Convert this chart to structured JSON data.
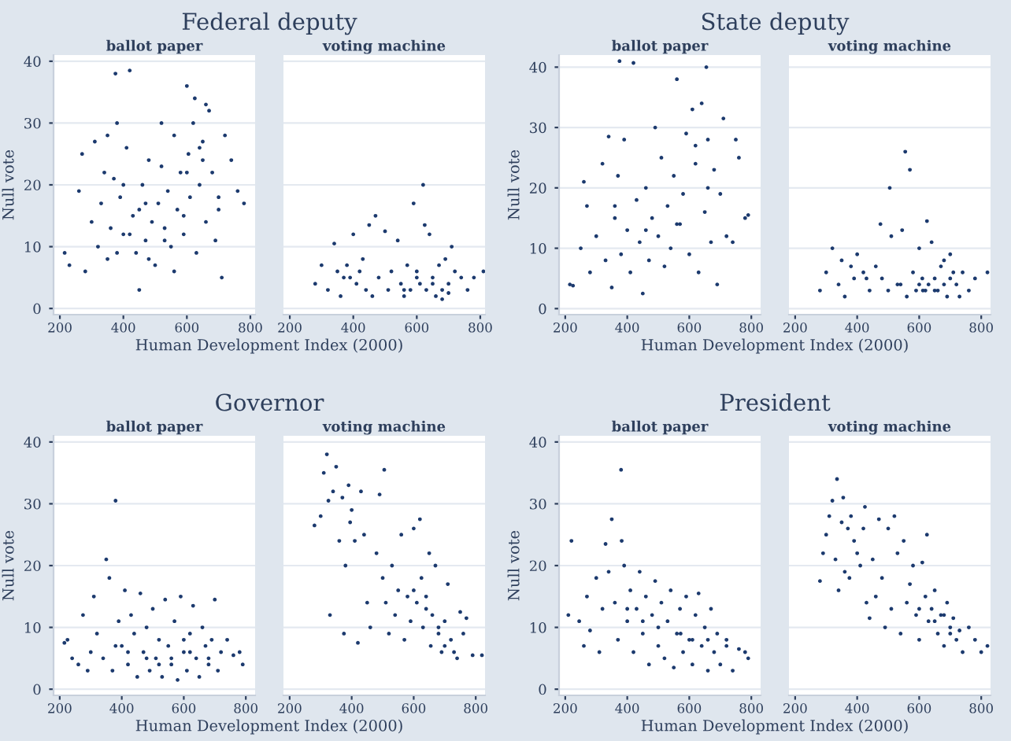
{
  "chart_data": [
    {
      "type": "scatter",
      "title": "Federal deputy",
      "subtitle": "ballot paper",
      "xlabel": "Human Development Index (2000)",
      "ylabel": "Null vote",
      "color": "#1c3a6e",
      "marker": "circle",
      "grid": "y",
      "xlim": [
        180,
        815
      ],
      "ylim": [
        -1,
        41
      ],
      "xticks": [
        200,
        400,
        600,
        800
      ],
      "yticks": [
        0,
        10,
        20,
        30,
        40
      ],
      "x": [
        215,
        230,
        260,
        270,
        280,
        300,
        310,
        320,
        330,
        340,
        350,
        360,
        370,
        375,
        380,
        390,
        400,
        410,
        420,
        430,
        440,
        450,
        460,
        470,
        480,
        490,
        500,
        510,
        520,
        530,
        540,
        550,
        560,
        570,
        580,
        590,
        600,
        605,
        610,
        620,
        625,
        630,
        640,
        650,
        660,
        670,
        680,
        690,
        700,
        710,
        720,
        740,
        760,
        780,
        420,
        380,
        450,
        560,
        600,
        640,
        700,
        350,
        480,
        520,
        660,
        400,
        590,
        650,
        530,
        470
      ],
      "values": [
        9,
        7,
        19,
        25,
        6,
        14,
        27,
        10,
        17,
        22,
        8,
        13,
        21,
        38,
        30,
        18,
        12,
        26,
        38.5,
        15,
        9,
        3,
        20,
        11,
        24,
        14,
        7,
        17,
        30,
        13,
        19,
        10,
        28,
        16,
        22,
        12,
        36,
        25,
        18,
        30,
        34,
        9,
        20,
        27,
        14,
        32,
        22,
        11,
        18,
        5,
        28,
        24,
        19,
        17,
        12,
        9,
        16,
        6,
        22,
        26,
        16,
        28,
        8,
        23,
        33,
        20,
        15,
        24,
        11,
        17
      ]
    },
    {
      "type": "scatter",
      "subtitle": "voting machine",
      "color": "#1c3a6e",
      "marker": "circle",
      "grid": "y",
      "tick_labels": "x",
      "xlim": [
        180,
        815
      ],
      "ylim": [
        -1,
        41
      ],
      "xticks": [
        200,
        400,
        600,
        800
      ],
      "yticks": [
        0,
        10,
        20,
        30,
        40
      ],
      "x": [
        280,
        300,
        320,
        340,
        350,
        360,
        380,
        390,
        400,
        410,
        420,
        440,
        450,
        460,
        470,
        480,
        500,
        510,
        520,
        540,
        550,
        560,
        570,
        580,
        590,
        600,
        610,
        620,
        625,
        630,
        640,
        650,
        660,
        670,
        680,
        690,
        700,
        710,
        720,
        740,
        760,
        780,
        810,
        650,
        600,
        560,
        680,
        430,
        370,
        700
      ],
      "values": [
        4,
        7,
        3,
        10.5,
        6,
        2,
        7,
        5,
        12,
        4,
        6,
        3,
        13.5,
        2,
        15,
        5,
        12.5,
        3,
        6,
        11,
        4,
        2,
        7,
        3,
        17,
        5,
        4,
        20,
        13.5,
        3,
        12,
        5,
        2,
        7,
        3,
        8,
        4,
        10,
        6,
        5,
        3,
        5,
        6,
        4,
        6,
        3,
        1.5,
        8,
        5,
        2.5
      ]
    },
    {
      "type": "scatter",
      "title": "State deputy",
      "subtitle": "ballot paper",
      "xlabel": "Human Development Index (2000)",
      "ylabel": "Null vote",
      "color": "#1c3a6e",
      "marker": "circle",
      "grid": "y",
      "xlim": [
        180,
        830
      ],
      "ylim": [
        -1,
        42
      ],
      "xticks": [
        200,
        400,
        600,
        800
      ],
      "yticks": [
        0,
        10,
        20,
        30,
        40
      ],
      "x": [
        215,
        225,
        250,
        260,
        270,
        280,
        300,
        320,
        330,
        340,
        350,
        360,
        370,
        375,
        380,
        390,
        400,
        410,
        420,
        430,
        440,
        450,
        460,
        470,
        480,
        490,
        500,
        510,
        520,
        530,
        540,
        550,
        560,
        570,
        580,
        590,
        600,
        610,
        620,
        630,
        640,
        650,
        655,
        660,
        670,
        680,
        690,
        700,
        710,
        720,
        740,
        750,
        760,
        780,
        790,
        360,
        460,
        560,
        620,
        660
      ],
      "values": [
        4,
        3.8,
        10,
        21,
        17,
        6,
        12,
        24,
        8,
        28.5,
        3.5,
        15,
        22,
        41,
        9,
        28,
        13,
        6,
        40.7,
        18,
        11,
        2.5,
        20,
        8,
        15,
        30,
        12,
        25,
        7,
        17,
        10,
        22,
        38,
        14,
        19,
        29,
        9,
        33,
        24,
        6,
        34,
        16,
        40,
        28,
        11,
        23,
        4,
        19,
        31.5,
        12,
        11,
        28,
        25,
        15,
        15.5,
        17,
        13,
        14,
        27,
        20
      ]
    },
    {
      "type": "scatter",
      "subtitle": "voting machine",
      "color": "#1c3a6e",
      "marker": "circle",
      "grid": "y",
      "tick_labels": "x",
      "xlim": [
        180,
        830
      ],
      "ylim": [
        -1,
        42
      ],
      "xticks": [
        200,
        400,
        600,
        800
      ],
      "yticks": [
        0,
        10,
        20,
        30,
        40
      ],
      "x": [
        280,
        300,
        320,
        340,
        350,
        360,
        380,
        390,
        400,
        420,
        440,
        460,
        475,
        480,
        500,
        505,
        510,
        530,
        545,
        555,
        560,
        570,
        580,
        590,
        600,
        610,
        620,
        625,
        630,
        640,
        650,
        660,
        670,
        680,
        690,
        700,
        710,
        720,
        740,
        760,
        780,
        820,
        650,
        600,
        700,
        430,
        540,
        612,
        680,
        730
      ],
      "values": [
        3,
        6,
        10,
        4,
        8,
        2,
        7,
        5,
        9,
        6,
        3,
        7,
        14,
        5,
        3,
        20,
        12,
        4,
        13,
        26,
        2,
        23,
        6,
        3,
        10,
        5,
        3,
        14.5,
        4,
        11,
        5,
        3,
        7,
        4,
        2,
        9,
        6,
        4,
        6,
        3,
        5,
        6,
        3,
        4,
        5,
        5,
        4,
        3,
        8,
        2
      ]
    },
    {
      "type": "scatter",
      "title": "Governor",
      "subtitle": "ballot paper",
      "xlabel": "Human Development Index (2000)",
      "ylabel": "Null vote",
      "color": "#1c3a6e",
      "marker": "circle",
      "grid": "y",
      "xlim": [
        180,
        830
      ],
      "ylim": [
        -1,
        41
      ],
      "xticks": [
        200,
        400,
        600,
        800
      ],
      "yticks": [
        0,
        10,
        20,
        30,
        40
      ],
      "x": [
        215,
        225,
        240,
        260,
        275,
        290,
        300,
        310,
        320,
        340,
        350,
        360,
        370,
        380,
        390,
        400,
        410,
        420,
        430,
        440,
        450,
        460,
        470,
        480,
        490,
        500,
        510,
        520,
        530,
        540,
        550,
        560,
        570,
        580,
        590,
        600,
        610,
        620,
        630,
        640,
        650,
        660,
        670,
        680,
        690,
        700,
        710,
        720,
        740,
        760,
        780,
        790,
        420,
        480,
        560,
        620,
        680,
        380,
        520,
        600
      ],
      "values": [
        7.5,
        8,
        5,
        4,
        12,
        3,
        6,
        15,
        9,
        5,
        21,
        18,
        3,
        30.5,
        11,
        7,
        16,
        4,
        12,
        9,
        2,
        15.5,
        6,
        10,
        3,
        13,
        5,
        8,
        2,
        14.5,
        7,
        4,
        11,
        1.5,
        15,
        6,
        3,
        9,
        13.5,
        5,
        2,
        10,
        7,
        4,
        8,
        14.5,
        3,
        6,
        8,
        5.5,
        6,
        4,
        6,
        5,
        5,
        6,
        5,
        7,
        4,
        8
      ]
    },
    {
      "type": "scatter",
      "subtitle": "voting machine",
      "color": "#1c3a6e",
      "marker": "circle",
      "grid": "y",
      "tick_labels": "x",
      "xlim": [
        180,
        830
      ],
      "ylim": [
        -1,
        41
      ],
      "xticks": [
        200,
        400,
        600,
        800
      ],
      "yticks": [
        0,
        10,
        20,
        30,
        40
      ],
      "x": [
        280,
        300,
        310,
        320,
        325,
        330,
        340,
        350,
        360,
        370,
        375,
        380,
        390,
        395,
        400,
        410,
        420,
        430,
        440,
        450,
        460,
        480,
        490,
        500,
        505,
        510,
        520,
        530,
        540,
        550,
        560,
        570,
        580,
        590,
        600,
        610,
        620,
        625,
        630,
        640,
        650,
        655,
        660,
        670,
        680,
        690,
        700,
        710,
        720,
        740,
        750,
        760,
        770,
        790,
        820,
        600,
        640,
        680,
        700,
        730
      ],
      "values": [
        26.5,
        28,
        35,
        38,
        30.5,
        12,
        32,
        36,
        24,
        31,
        9,
        20,
        33,
        27,
        29,
        24,
        7.5,
        32,
        25,
        14,
        10,
        22,
        31.5,
        18,
        35.5,
        14,
        9,
        20,
        12,
        16,
        25,
        8,
        15,
        11,
        26,
        14,
        27.5,
        18,
        10,
        13,
        22,
        7,
        12,
        20,
        9,
        6,
        11,
        17,
        8,
        5,
        12.5,
        9,
        11.5,
        5.5,
        5.5,
        16,
        15,
        10,
        7,
        6
      ]
    },
    {
      "type": "scatter",
      "title": "President",
      "subtitle": "ballot paper",
      "xlabel": "Human Development Index (2000)",
      "ylabel": "Null vote",
      "color": "#1c3a6e",
      "marker": "circle",
      "grid": "y",
      "xlim": [
        180,
        830
      ],
      "ylim": [
        -1,
        41
      ],
      "xticks": [
        200,
        400,
        600,
        800
      ],
      "yticks": [
        0,
        10,
        20,
        30,
        40
      ],
      "x": [
        210,
        220,
        245,
        260,
        270,
        280,
        300,
        310,
        320,
        330,
        340,
        350,
        360,
        370,
        380,
        382,
        390,
        400,
        410,
        420,
        430,
        440,
        450,
        460,
        470,
        480,
        490,
        500,
        510,
        520,
        530,
        540,
        550,
        560,
        570,
        580,
        590,
        600,
        610,
        620,
        630,
        640,
        650,
        660,
        670,
        680,
        690,
        700,
        720,
        740,
        760,
        780,
        790,
        400,
        450,
        500,
        572,
        610,
        660,
        720
      ],
      "values": [
        12,
        24,
        11,
        7,
        15,
        9.5,
        18,
        6,
        13,
        23.5,
        19,
        27.5,
        14,
        8,
        35.5,
        24,
        20,
        11,
        16,
        6,
        13,
        19,
        9,
        15,
        4,
        12,
        17.5,
        7,
        14,
        5,
        11,
        16,
        3.5,
        9,
        13,
        6,
        15,
        8,
        4,
        12,
        15.5,
        7,
        10,
        3,
        13,
        6,
        9,
        4,
        8,
        3,
        6.5,
        6,
        5,
        13,
        11,
        10,
        9,
        8,
        8,
        7
      ]
    },
    {
      "type": "scatter",
      "subtitle": "voting machine",
      "color": "#1c3a6e",
      "marker": "circle",
      "grid": "y",
      "tick_labels": "x",
      "xlim": [
        180,
        830
      ],
      "ylim": [
        -1,
        41
      ],
      "xticks": [
        200,
        400,
        600,
        800
      ],
      "yticks": [
        0,
        10,
        20,
        30,
        40
      ],
      "x": [
        280,
        290,
        300,
        310,
        320,
        330,
        335,
        340,
        350,
        355,
        360,
        370,
        375,
        380,
        390,
        400,
        410,
        420,
        425,
        430,
        440,
        450,
        460,
        470,
        480,
        490,
        500,
        510,
        520,
        530,
        540,
        550,
        560,
        570,
        580,
        590,
        600,
        610,
        620,
        625,
        630,
        640,
        650,
        660,
        670,
        680,
        690,
        700,
        710,
        720,
        730,
        740,
        760,
        780,
        800,
        820,
        650,
        600,
        700,
        680
      ],
      "values": [
        17.5,
        22,
        25,
        28,
        30.5,
        21,
        34,
        16,
        27,
        31,
        19,
        26,
        18,
        28,
        24,
        22,
        20,
        26,
        29.5,
        14,
        11.5,
        21,
        15,
        27.5,
        18,
        10,
        26,
        13,
        28,
        22,
        9,
        24,
        14,
        17,
        20,
        12,
        8,
        20.5,
        15,
        25,
        11,
        13,
        16,
        9,
        12,
        7,
        14,
        10,
        11.5,
        8,
        9.5,
        6,
        10,
        8,
        6,
        7,
        11,
        13,
        9,
        12
      ]
    }
  ]
}
